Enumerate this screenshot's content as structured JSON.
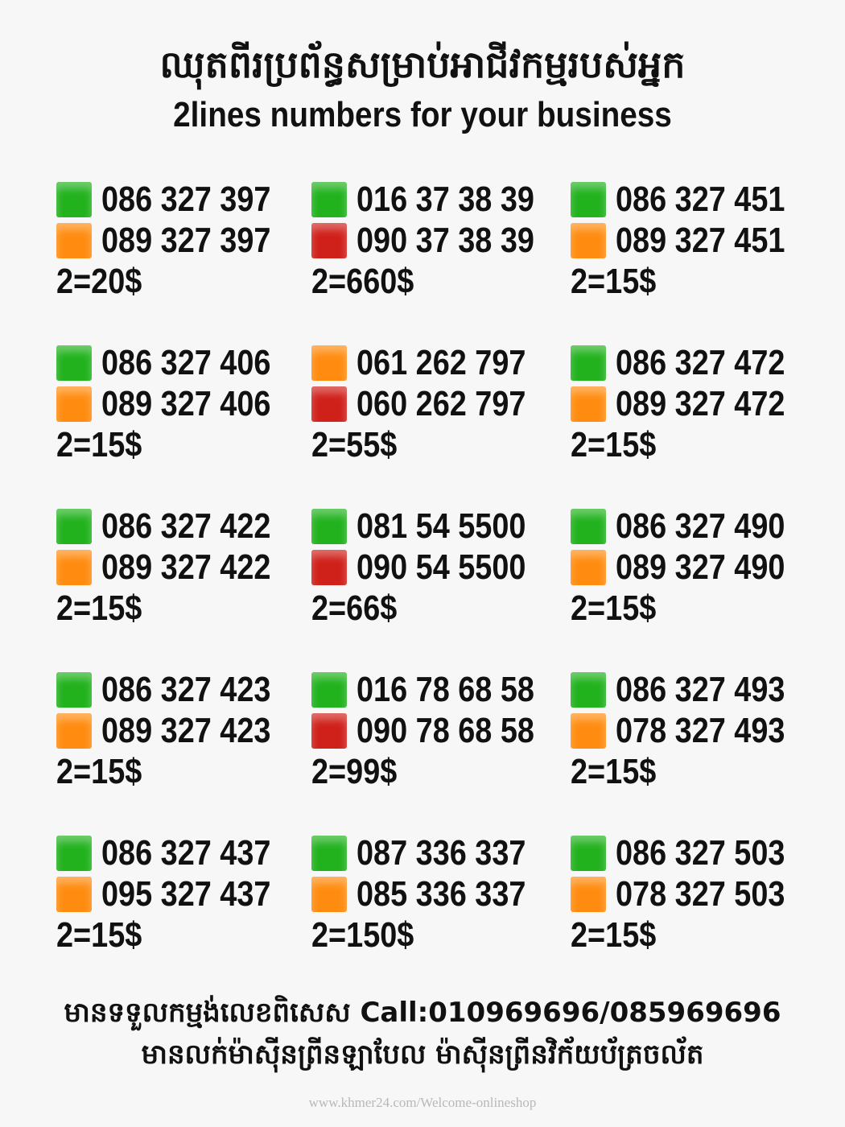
{
  "header": {
    "title_khmer": "ឈុតពីរប្រព័ន្ធសម្រាប់អាជីវកម្មរបស់អ្នក",
    "title_english": "2lines numbers for your business"
  },
  "colors": {
    "green": "#22b21e",
    "orange": "#ff8c10",
    "red": "#d0201a"
  },
  "sets": [
    {
      "lines": [
        {
          "color": "green",
          "number": "086 327 397"
        },
        {
          "color": "orange",
          "number": "089 327 397"
        }
      ],
      "price": "2=20$"
    },
    {
      "lines": [
        {
          "color": "green",
          "number": "016 37 38 39"
        },
        {
          "color": "red",
          "number": "090 37 38 39"
        }
      ],
      "price": "2=660$"
    },
    {
      "lines": [
        {
          "color": "green",
          "number": "086 327 451"
        },
        {
          "color": "orange",
          "number": "089 327 451"
        }
      ],
      "price": "2=15$"
    },
    {
      "lines": [
        {
          "color": "green",
          "number": "086 327 406"
        },
        {
          "color": "orange",
          "number": "089 327 406"
        }
      ],
      "price": "2=15$"
    },
    {
      "lines": [
        {
          "color": "orange",
          "number": "061 262 797"
        },
        {
          "color": "red",
          "number": "060 262 797"
        }
      ],
      "price": "2=55$"
    },
    {
      "lines": [
        {
          "color": "green",
          "number": "086 327 472"
        },
        {
          "color": "orange",
          "number": "089 327 472"
        }
      ],
      "price": "2=15$"
    },
    {
      "lines": [
        {
          "color": "green",
          "number": "086 327 422"
        },
        {
          "color": "orange",
          "number": "089 327 422"
        }
      ],
      "price": "2=15$"
    },
    {
      "lines": [
        {
          "color": "green",
          "number": "081 54 5500"
        },
        {
          "color": "red",
          "number": "090 54 5500"
        }
      ],
      "price": "2=66$"
    },
    {
      "lines": [
        {
          "color": "green",
          "number": "086 327 490"
        },
        {
          "color": "orange",
          "number": "089 327 490"
        }
      ],
      "price": "2=15$"
    },
    {
      "lines": [
        {
          "color": "green",
          "number": "086 327 423"
        },
        {
          "color": "orange",
          "number": "089 327 423"
        }
      ],
      "price": "2=15$"
    },
    {
      "lines": [
        {
          "color": "green",
          "number": "016 78 68 58"
        },
        {
          "color": "red",
          "number": "090 78 68 58"
        }
      ],
      "price": "2=99$"
    },
    {
      "lines": [
        {
          "color": "green",
          "number": "086 327 493"
        },
        {
          "color": "orange",
          "number": "078 327 493"
        }
      ],
      "price": "2=15$"
    },
    {
      "lines": [
        {
          "color": "green",
          "number": "086 327 437"
        },
        {
          "color": "orange",
          "number": "095 327 437"
        }
      ],
      "price": "2=15$"
    },
    {
      "lines": [
        {
          "color": "green",
          "number": "087 336 337"
        },
        {
          "color": "orange",
          "number": "085 336 337"
        }
      ],
      "price": "2=150$"
    },
    {
      "lines": [
        {
          "color": "green",
          "number": "086 327 503"
        },
        {
          "color": "orange",
          "number": "078 327 503"
        }
      ],
      "price": "2=15$"
    }
  ],
  "footer": {
    "line1": "មានទទួលកម្មង់លេខពិសេស Call:010969696/085969696",
    "line2": "មានលក់ម៉ាស៊ីនព្រីនឡាបែល ម៉ាស៊ីនព្រីនវិក័យប័ត្រចល័ត"
  },
  "watermark": "www.khmer24.com/Welcome-onlineshop"
}
